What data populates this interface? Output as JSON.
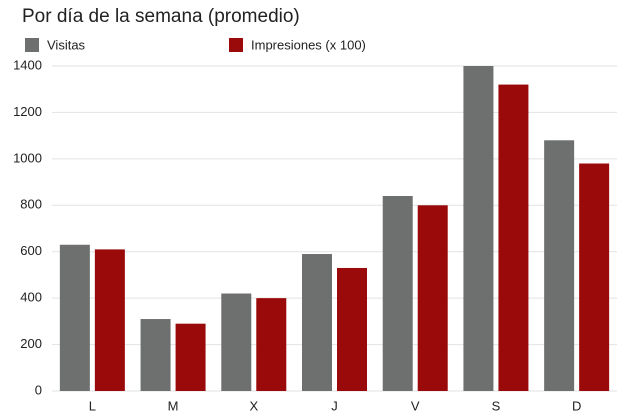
{
  "chart_data": {
    "type": "bar",
    "title": "Por día de la semana (promedio)",
    "categories": [
      "L",
      "M",
      "X",
      "J",
      "V",
      "S",
      "D"
    ],
    "series": [
      {
        "name": "Visitas",
        "color": "#6d706f",
        "values": [
          630,
          310,
          420,
          590,
          840,
          1400,
          1080
        ]
      },
      {
        "name": "Impresiones (x 100)",
        "color": "#9b0a0a",
        "values": [
          610,
          290,
          400,
          530,
          800,
          1320,
          980
        ]
      }
    ],
    "ylim": [
      0,
      1400
    ],
    "yticks": [
      0,
      200,
      400,
      600,
      800,
      1000,
      1200,
      1400
    ],
    "grid": true,
    "legend": "top"
  }
}
